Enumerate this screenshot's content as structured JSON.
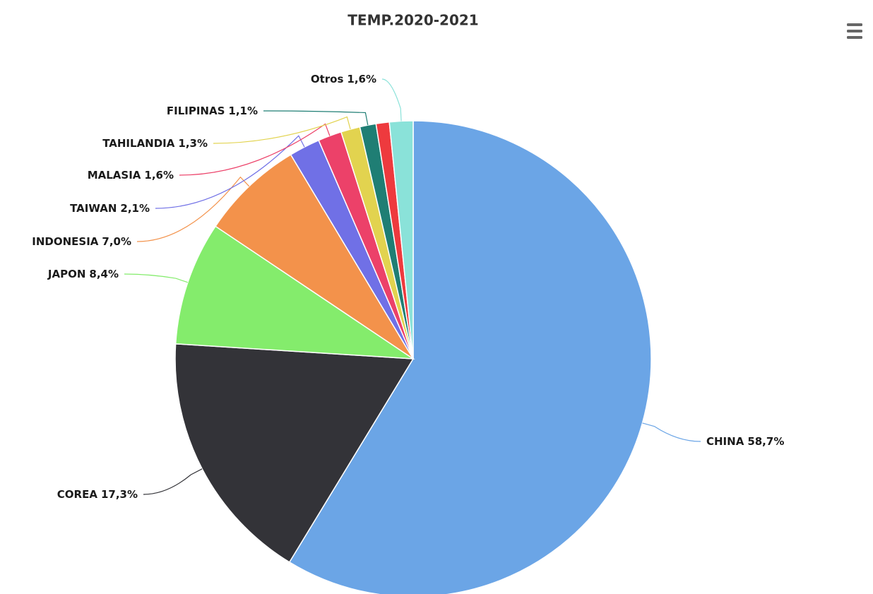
{
  "chart_data": {
    "type": "pie",
    "title": "TEMP.2020-2021",
    "categories": [
      "CHINA",
      "COREA",
      "JAPON",
      "INDONESIA",
      "TAIWAN",
      "MALASIA",
      "TAHILANDIA",
      "FILIPINAS",
      null,
      "Otros"
    ],
    "values": [
      58.7,
      17.3,
      8.4,
      7.0,
      2.1,
      1.6,
      1.3,
      1.1,
      0.9,
      1.6
    ],
    "value_labels": [
      "58,7%",
      "17,3%",
      "8,4%",
      "7,0%",
      "2,1%",
      "1,6%",
      "1,3%",
      "1,1%",
      null,
      "1,6%"
    ],
    "colors": [
      "#6ba5e6",
      "#333338",
      "#84ec6c",
      "#f3924b",
      "#7070e6",
      "#ec4169",
      "#e2d34f",
      "#1f7e74",
      "#ee3a3e",
      "#8ae2d9"
    ]
  }
}
